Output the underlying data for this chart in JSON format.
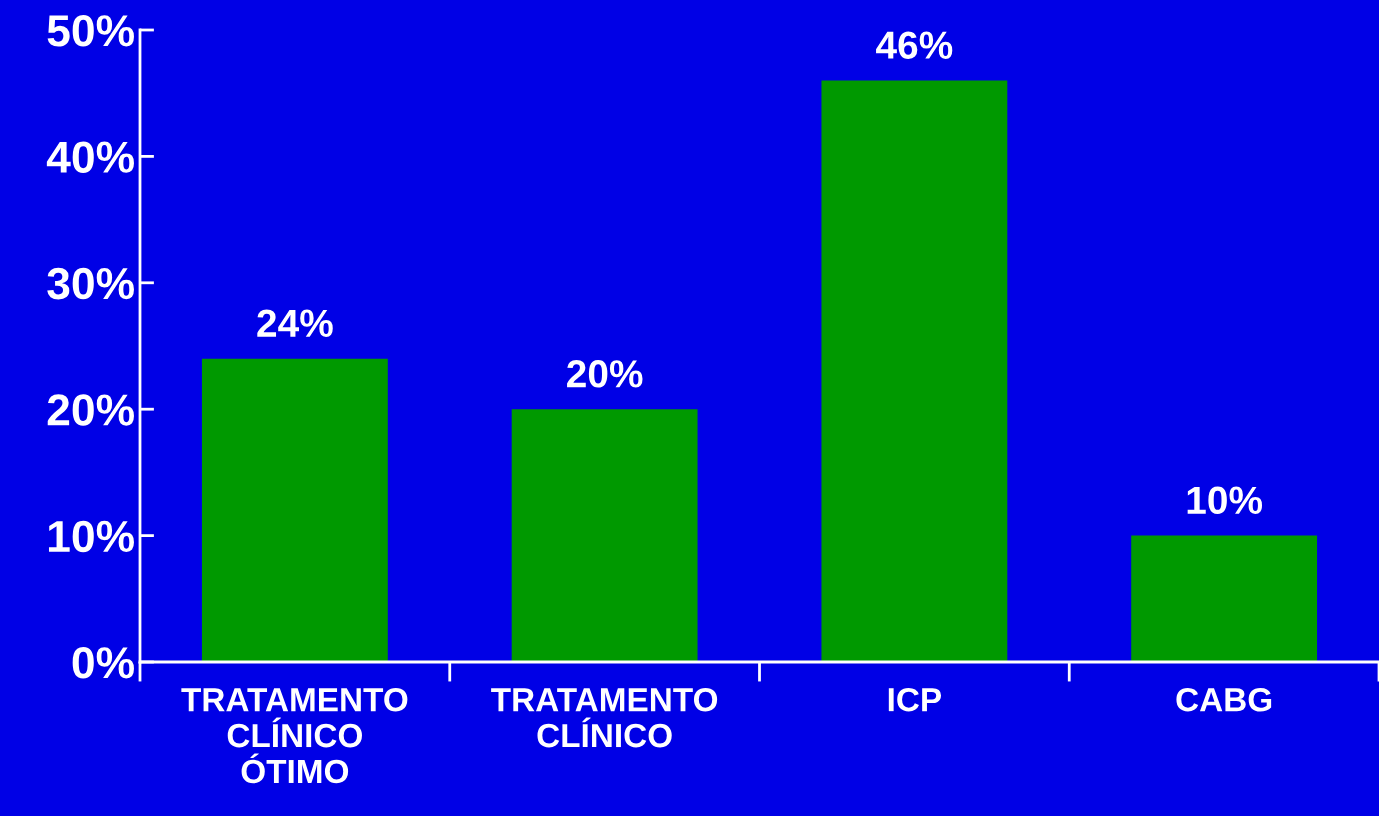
{
  "chart_data": {
    "type": "bar",
    "categories": [
      "TRATAMENTO\nCLÍNICO\nÓTIMO",
      "TRATAMENTO\nCLÍNICO",
      "ICP",
      "CABG"
    ],
    "values": [
      24,
      20,
      46,
      10
    ],
    "color": "#009900",
    "value_labels": [
      "24%",
      "20%",
      "46%",
      "10%"
    ],
    "ylim": [
      0,
      50
    ],
    "yticks": [
      {
        "value": 0,
        "label": "0%"
      },
      {
        "value": 10,
        "label": "10%"
      },
      {
        "value": 20,
        "label": "20%"
      },
      {
        "value": 30,
        "label": "30%"
      },
      {
        "value": 40,
        "label": "40%"
      },
      {
        "value": 50,
        "label": "50%"
      }
    ],
    "grid": false,
    "legend": false
  }
}
